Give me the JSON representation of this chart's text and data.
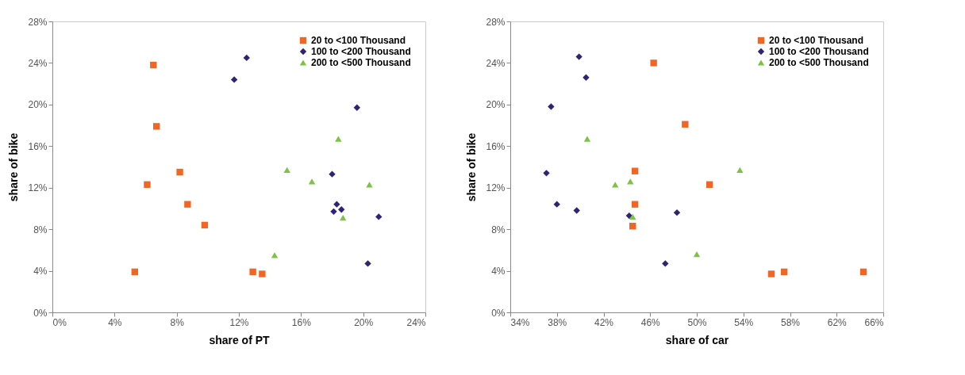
{
  "chart_data": [
    {
      "type": "scatter",
      "xlabel": "share of PT",
      "ylabel": "share of bike",
      "legend": "top right",
      "grid": false,
      "xlim": [
        0,
        24
      ],
      "xticks": [
        {
          "value": 0,
          "label": "0%"
        },
        {
          "value": 4,
          "label": "4%"
        },
        {
          "value": 8,
          "label": "8%"
        },
        {
          "value": 12,
          "label": "12%"
        },
        {
          "value": 16,
          "label": "16%"
        },
        {
          "value": 20,
          "label": "20%"
        },
        {
          "value": 24,
          "label": "24%"
        }
      ],
      "ylim": [
        0,
        28
      ],
      "yticks": [
        {
          "value": 0,
          "label": "0%"
        },
        {
          "value": 4,
          "label": "4%"
        },
        {
          "value": 8,
          "label": "8%"
        },
        {
          "value": 12,
          "label": "12%"
        },
        {
          "value": 16,
          "label": "16%"
        },
        {
          "value": 20,
          "label": "20%"
        },
        {
          "value": 24,
          "label": "24%"
        },
        {
          "value": 28,
          "label": "28%"
        }
      ],
      "series": [
        {
          "name": "20 to <100 Thousand",
          "color": "#f26522",
          "marker": "square",
          "x": [
            6.5,
            6.7,
            8.2,
            6.1,
            8.7,
            9.8,
            5.3,
            12.9,
            13.5
          ],
          "values": [
            23.8,
            17.9,
            13.5,
            12.3,
            10.4,
            8.4,
            3.9,
            3.9,
            3.7
          ]
        },
        {
          "name": "100 to <200 Thousand",
          "color": "#2e2473",
          "marker": "diamond",
          "x": [
            12.5,
            11.7,
            19.6,
            18.0,
            18.3,
            18.1,
            18.6,
            21.0,
            20.3
          ],
          "values": [
            24.5,
            22.4,
            19.7,
            13.3,
            10.4,
            9.7,
            9.9,
            9.2,
            4.7
          ]
        },
        {
          "name": "200 to <500 Thousand",
          "color": "#7dc242",
          "marker": "triangle",
          "x": [
            18.4,
            15.1,
            16.7,
            20.4,
            18.7,
            14.3
          ],
          "values": [
            16.7,
            13.7,
            12.6,
            12.3,
            9.1,
            5.5
          ]
        }
      ]
    },
    {
      "type": "scatter",
      "xlabel": "share of car",
      "ylabel": "share of bike",
      "legend": "top right",
      "grid": false,
      "xlim": [
        34,
        66
      ],
      "xticks": [
        {
          "value": 34,
          "label": "34%"
        },
        {
          "value": 38,
          "label": "38%"
        },
        {
          "value": 42,
          "label": "42%"
        },
        {
          "value": 46,
          "label": "46%"
        },
        {
          "value": 50,
          "label": "50%"
        },
        {
          "value": 54,
          "label": "54%"
        },
        {
          "value": 58,
          "label": "58%"
        },
        {
          "value": 62,
          "label": "62%"
        },
        {
          "value": 66,
          "label": "66%"
        }
      ],
      "ylim": [
        0,
        28
      ],
      "yticks": [
        {
          "value": 0,
          "label": "0%"
        },
        {
          "value": 4,
          "label": "4%"
        },
        {
          "value": 8,
          "label": "8%"
        },
        {
          "value": 12,
          "label": "12%"
        },
        {
          "value": 16,
          "label": "16%"
        },
        {
          "value": 20,
          "label": "20%"
        },
        {
          "value": 24,
          "label": "24%"
        },
        {
          "value": 28,
          "label": "28%"
        }
      ],
      "series": [
        {
          "name": "20 to <100 Thousand",
          "color": "#f26522",
          "marker": "square",
          "x": [
            46.3,
            49.0,
            44.7,
            44.7,
            44.5,
            51.1,
            56.4,
            57.5,
            64.3
          ],
          "values": [
            24.0,
            18.1,
            13.6,
            10.4,
            8.3,
            12.3,
            3.7,
            3.9,
            3.9
          ]
        },
        {
          "name": "100 to <200 Thousand",
          "color": "#2e2473",
          "marker": "diamond",
          "x": [
            39.9,
            40.5,
            37.5,
            37.1,
            38.0,
            39.7,
            44.2,
            48.3,
            47.3
          ],
          "values": [
            24.6,
            22.6,
            19.8,
            13.4,
            10.4,
            9.8,
            9.3,
            9.6,
            4.7
          ]
        },
        {
          "name": "200 to <500 Thousand",
          "color": "#7dc242",
          "marker": "triangle",
          "x": [
            40.6,
            43.0,
            44.3,
            44.5,
            50.0,
            53.7
          ],
          "values": [
            16.7,
            12.3,
            12.6,
            9.2,
            5.6,
            13.7
          ]
        }
      ]
    }
  ]
}
